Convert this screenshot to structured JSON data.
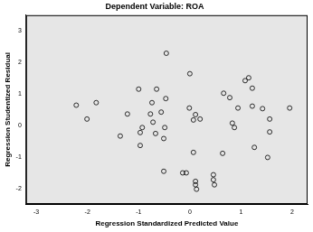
{
  "chart_data": {
    "type": "scatter",
    "title": "Dependent Variable: ROA",
    "x_label": "Regression Standardized Predicted Value",
    "y_label": "Regression Studentized Residual",
    "x": [
      -2.22,
      -2.01,
      -1.83,
      -1.36,
      -1.22,
      -1.0,
      -0.97,
      -0.93,
      -0.97,
      -0.77,
      -0.74,
      -0.72,
      -0.65,
      -0.67,
      -0.56,
      -0.51,
      -0.47,
      -0.46,
      -0.49,
      -0.51,
      -0.14,
      -0.07,
      0.0,
      -0.01,
      0.07,
      0.11,
      0.2,
      0.07,
      0.11,
      0.11,
      0.13,
      0.46,
      0.48,
      0.46,
      0.64,
      0.66,
      0.78,
      0.83,
      0.87,
      0.94,
      1.08,
      1.15,
      1.22,
      1.22,
      1.26,
      1.42,
      1.56,
      1.56,
      1.52,
      1.95
    ],
    "values": [
      0.64,
      0.2,
      0.72,
      -0.34,
      0.36,
      1.15,
      -0.64,
      -0.07,
      -0.23,
      0.36,
      0.72,
      0.1,
      1.15,
      -0.26,
      0.42,
      -0.42,
      0.85,
      2.29,
      -0.07,
      -1.46,
      -1.51,
      -1.51,
      1.64,
      0.55,
      0.17,
      0.34,
      0.2,
      -0.86,
      -1.78,
      -1.89,
      -2.03,
      -1.73,
      -1.89,
      -1.57,
      -0.89,
      1.02,
      0.88,
      0.07,
      -0.07,
      0.55,
      1.42,
      1.51,
      1.18,
      0.61,
      -0.7,
      0.53,
      0.2,
      -0.21,
      -1.02,
      0.55
    ],
    "color": "#000000",
    "marker": "o",
    "xlim": [
      -3.2,
      2.3
    ],
    "xticks": [
      -3,
      -2,
      -1,
      0,
      1,
      2
    ],
    "ylim": [
      -2.5,
      3.5
    ],
    "yticks": [
      -2,
      -1,
      0,
      1,
      2,
      3
    ],
    "grid": false
  }
}
